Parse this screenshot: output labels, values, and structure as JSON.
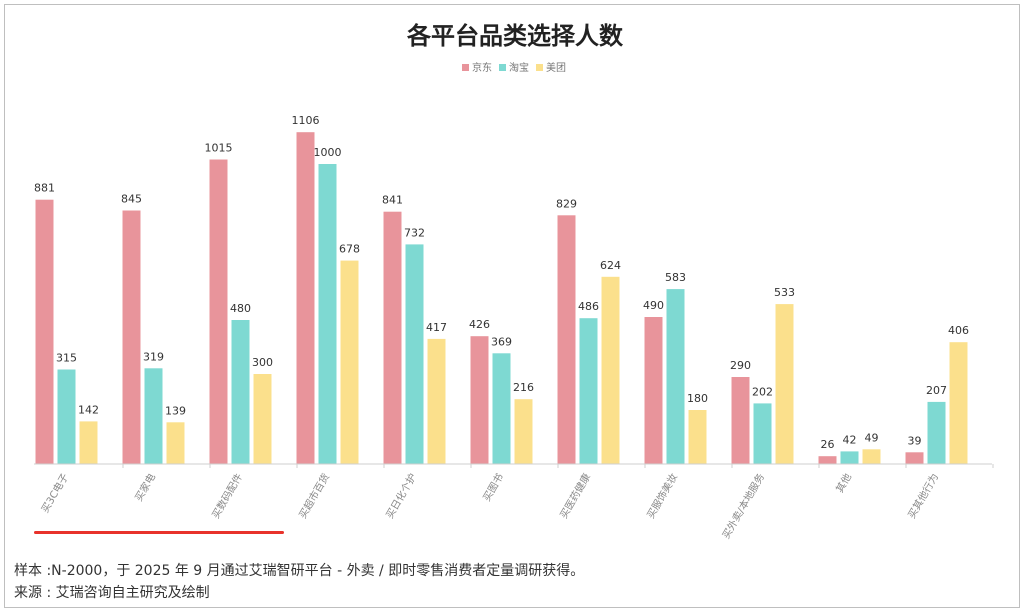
{
  "chart_data": {
    "type": "bar",
    "title": "各平台品类选择人数",
    "categories": [
      "买3C电子",
      "买家电",
      "买数码配件",
      "买超市百货",
      "买日化个护",
      "买图书",
      "买医药健康",
      "买服饰美妆",
      "买外卖/本地服务",
      "其他",
      "买其他行为"
    ],
    "series": [
      {
        "name": "京东",
        "color": "#e8949b",
        "values": [
          881,
          845,
          1015,
          1106,
          841,
          426,
          829,
          490,
          290,
          26,
          39
        ]
      },
      {
        "name": "淘宝",
        "color": "#7ed9d2",
        "values": [
          315,
          319,
          480,
          1000,
          732,
          369,
          486,
          583,
          202,
          42,
          207
        ]
      },
      {
        "name": "美团",
        "color": "#fbe08c",
        "values": [
          142,
          139,
          300,
          678,
          417,
          216,
          624,
          180,
          533,
          49,
          406
        ]
      }
    ],
    "ylim": [
      0,
      1200
    ],
    "legend_position": "top-center",
    "grid": false
  },
  "footnote": {
    "sample": "样本 :N-2000，于 2025 年 9 月通过艾瑞智研平台 - 外卖 / 即时零售消费者定量调研获得。",
    "source": "来源 : 艾瑞咨询自主研究及绘制"
  }
}
